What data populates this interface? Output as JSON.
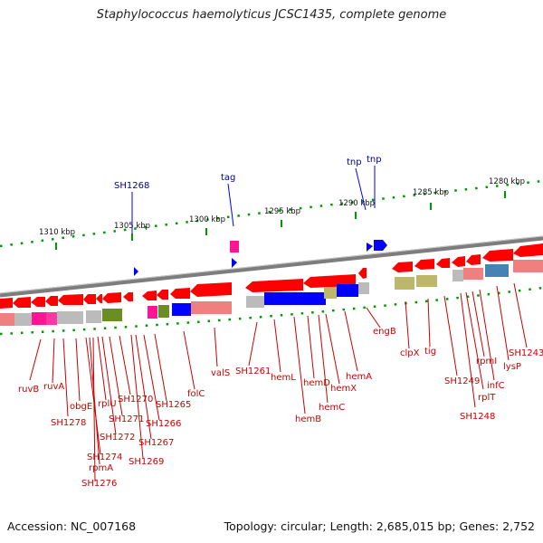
{
  "title": "Staphylococcus haemolyticus JCSC1435, complete genome",
  "footer": {
    "accession": "Accession: NC_007168",
    "summary": "Topology: circular; Length: 2,685,015 bp; Genes: 2,752"
  },
  "scale_labels": [
    "1310 kbp",
    "1305 kbp",
    "1300 kbp",
    "1295 kbp",
    "1290 kbp",
    "1285 kbp",
    "1280 kbp"
  ],
  "forward_labels": [
    "SH1268",
    "tag",
    "tnp",
    "tnp"
  ],
  "gene_labels": [
    "ruvB",
    "ruvA",
    "SH1278",
    "obgE",
    "SH1274",
    "rpmA",
    "SH1276",
    "rplU",
    "SH1272",
    "SH1271",
    "SH1270",
    "SH1269",
    "SH1267",
    "SH1266",
    "SH1265",
    "folC",
    "valS",
    "SH1261",
    "hemL",
    "hemB",
    "hemD",
    "hemC",
    "hemX",
    "hemA",
    "engB",
    "clpX",
    "tig",
    "SH1249",
    "SH1248",
    "rplT",
    "rpmI",
    "infC",
    "lysP",
    "SH1243"
  ],
  "colors": {
    "reverse_gene": "#ff0000",
    "forward_gene": "#0000ff",
    "label_reverse": "#cc0000",
    "label_forward": "#000099",
    "backbone": "#888888",
    "tick": "#009900",
    "cog_pink": "#ff1493",
    "cog_gray": "#bbbbbb",
    "cog_olive": "#6b8e23",
    "cog_blue": "#0000ff",
    "cog_salmon": "#f08080",
    "cog_khaki": "#bdb76b",
    "cog_steel": "#4682b4"
  }
}
